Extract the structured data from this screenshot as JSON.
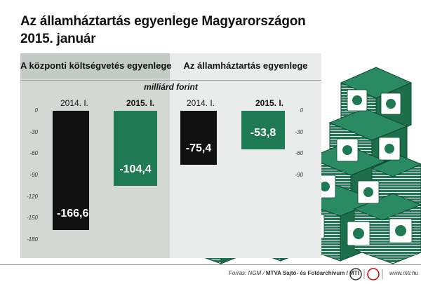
{
  "title": {
    "line1": "Az államháztartás egyenlege Magyarországon",
    "line2": "2015. január"
  },
  "panels": {
    "left_header": "A központi költségvetés egyenlege",
    "right_header": "Az államháztartás egyenlege"
  },
  "unit": "milliárd forint",
  "footer": {
    "source_prefix": "Forrás: NGM / ",
    "source_bold": "MTVA Sajtó- és Fotóarchívum / MTI",
    "url": "www.mti.hu"
  },
  "colors": {
    "black_bar": "#111111",
    "green_bar": "#1d7a52",
    "panel_left": "#d3d8d4",
    "panel_right": "#e9ecea",
    "money": "#1f7a53"
  },
  "chart_data": [
    {
      "type": "bar",
      "title": "A központi költségvetés egyenlege",
      "categories": [
        "2014. I.",
        "2015. I."
      ],
      "values": [
        -166.6,
        -104.4
      ],
      "value_labels": [
        "-166,6",
        "-104,4"
      ],
      "ylabel": "milliárd forint",
      "ylim": [
        -180,
        0
      ],
      "yticks": [
        "0",
        "-30",
        "-60",
        "-90",
        "-120",
        "-150",
        "-180"
      ]
    },
    {
      "type": "bar",
      "title": "Az államháztartás egyenlege",
      "categories": [
        "2014. I.",
        "2015. I."
      ],
      "values": [
        -75.4,
        -53.8
      ],
      "value_labels": [
        "-75,4",
        "-53,8"
      ],
      "ylabel": "milliárd forint",
      "ylim": [
        -90,
        0
      ],
      "yticks": [
        "0",
        "-30",
        "-60",
        "-90"
      ]
    }
  ]
}
